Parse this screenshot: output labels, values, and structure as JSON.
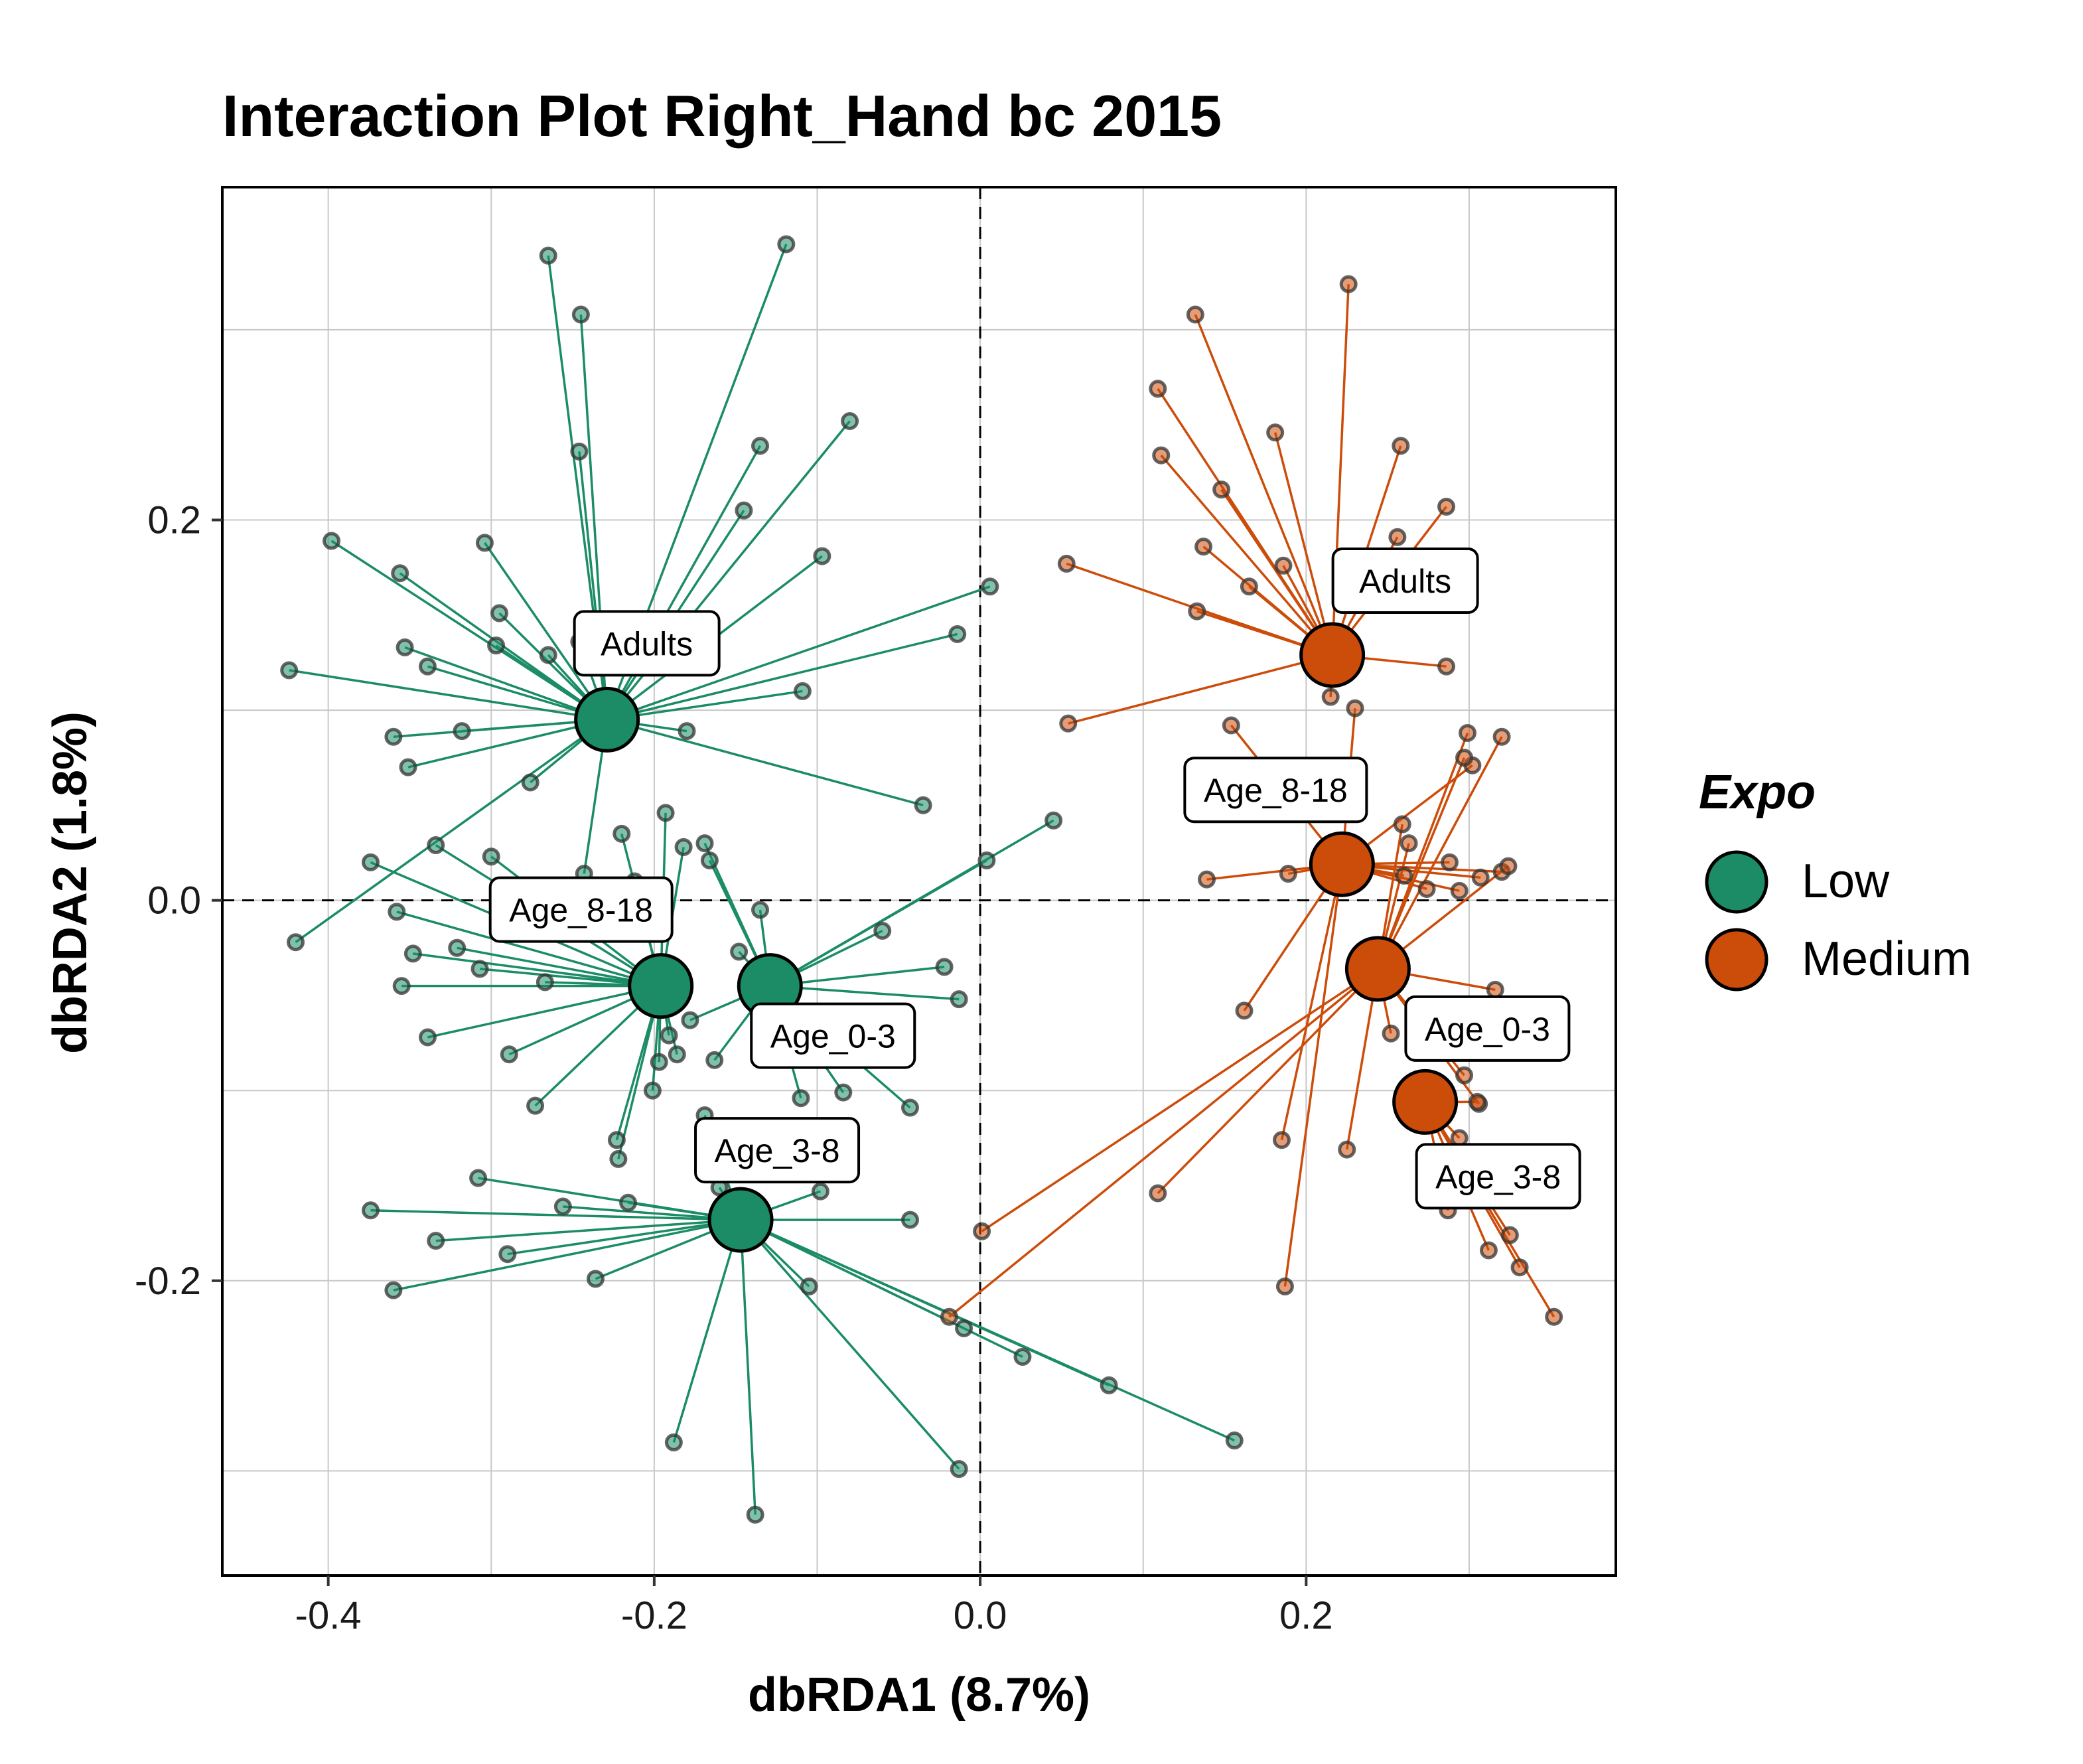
{
  "chart_data": {
    "type": "scatter",
    "title": "Interaction Plot Right_Hand bc 2015",
    "xlabel": "dbRDA1 (8.7%)",
    "ylabel": "dbRDA2 (1.8%)",
    "xlim": [
      -0.465,
      0.39
    ],
    "ylim": [
      -0.355,
      0.375
    ],
    "x_ticks": [
      -0.4,
      -0.2,
      0.0,
      0.2
    ],
    "x_tick_labels": [
      "-0.4",
      "-0.2",
      "0.0",
      "0.2"
    ],
    "y_ticks": [
      -0.2,
      0.0,
      0.2
    ],
    "y_tick_labels": [
      "-0.2",
      "0.0",
      "0.2"
    ],
    "grid": true,
    "reference_lines": {
      "x": 0,
      "y": 0,
      "style": "dashed"
    },
    "legend": {
      "title": "Expo",
      "placement": "right",
      "entries": [
        {
          "label": "Low",
          "color": "#1b8c66"
        },
        {
          "label": "Medium",
          "color": "#cc4c0a"
        }
      ]
    },
    "series": [
      {
        "name": "Low",
        "color": "#1b8c66",
        "centroids": [
          {
            "label": "Adults",
            "x": -0.229,
            "y": 0.095
          },
          {
            "label": "Age_8-18",
            "x": -0.196,
            "y": -0.045
          },
          {
            "label": "Age_0-3",
            "x": -0.129,
            "y": -0.045
          },
          {
            "label": "Age_3-8",
            "x": -0.147,
            "y": -0.168
          }
        ],
        "points": [
          {
            "g": 0,
            "x": -0.265,
            "y": 0.339
          },
          {
            "g": 0,
            "x": -0.245,
            "y": 0.308
          },
          {
            "g": 0,
            "x": -0.246,
            "y": 0.236
          },
          {
            "g": 0,
            "x": -0.398,
            "y": 0.189
          },
          {
            "g": 0,
            "x": -0.424,
            "y": 0.121
          },
          {
            "g": 0,
            "x": -0.356,
            "y": 0.172
          },
          {
            "g": 0,
            "x": -0.353,
            "y": 0.133
          },
          {
            "g": 0,
            "x": -0.339,
            "y": 0.123
          },
          {
            "g": 0,
            "x": -0.304,
            "y": 0.188
          },
          {
            "g": 0,
            "x": -0.295,
            "y": 0.151
          },
          {
            "g": 0,
            "x": -0.297,
            "y": 0.134
          },
          {
            "g": 0,
            "x": -0.265,
            "y": 0.129
          },
          {
            "g": 0,
            "x": -0.246,
            "y": 0.136
          },
          {
            "g": 0,
            "x": -0.36,
            "y": 0.086
          },
          {
            "g": 0,
            "x": -0.318,
            "y": 0.089
          },
          {
            "g": 0,
            "x": -0.351,
            "y": 0.07
          },
          {
            "g": 0,
            "x": -0.276,
            "y": 0.062
          },
          {
            "g": 0,
            "x": -0.119,
            "y": 0.345
          },
          {
            "g": 0,
            "x": -0.08,
            "y": 0.252
          },
          {
            "g": 0,
            "x": -0.135,
            "y": 0.239
          },
          {
            "g": 0,
            "x": -0.145,
            "y": 0.205
          },
          {
            "g": 0,
            "x": -0.097,
            "y": 0.181
          },
          {
            "g": 0,
            "x": -0.014,
            "y": 0.14
          },
          {
            "g": 0,
            "x": -0.109,
            "y": 0.11
          },
          {
            "g": 0,
            "x": -0.18,
            "y": 0.089
          },
          {
            "g": 0,
            "x": -0.035,
            "y": 0.05
          },
          {
            "g": 0,
            "x": -0.243,
            "y": 0.014
          },
          {
            "g": 0,
            "x": -0.42,
            "y": -0.022
          },
          {
            "g": 0,
            "x": 0.006,
            "y": 0.165
          },
          {
            "g": 1,
            "x": -0.374,
            "y": 0.02
          },
          {
            "g": 1,
            "x": -0.334,
            "y": 0.029
          },
          {
            "g": 1,
            "x": -0.3,
            "y": 0.023
          },
          {
            "g": 1,
            "x": -0.358,
            "y": -0.006
          },
          {
            "g": 1,
            "x": -0.348,
            "y": -0.028
          },
          {
            "g": 1,
            "x": -0.355,
            "y": -0.045
          },
          {
            "g": 1,
            "x": -0.321,
            "y": -0.025
          },
          {
            "g": 1,
            "x": -0.307,
            "y": -0.036
          },
          {
            "g": 1,
            "x": -0.267,
            "y": -0.043
          },
          {
            "g": 1,
            "x": -0.339,
            "y": -0.072
          },
          {
            "g": 1,
            "x": -0.289,
            "y": -0.081
          },
          {
            "g": 1,
            "x": -0.273,
            "y": -0.108
          },
          {
            "g": 1,
            "x": -0.22,
            "y": 0.035
          },
          {
            "g": 1,
            "x": -0.193,
            "y": 0.046
          },
          {
            "g": 1,
            "x": -0.182,
            "y": 0.028
          },
          {
            "g": 1,
            "x": -0.212,
            "y": 0.01
          },
          {
            "g": 1,
            "x": -0.191,
            "y": -0.071
          },
          {
            "g": 1,
            "x": -0.186,
            "y": -0.081
          },
          {
            "g": 1,
            "x": -0.201,
            "y": -0.1
          },
          {
            "g": 1,
            "x": -0.223,
            "y": -0.126
          },
          {
            "g": 1,
            "x": -0.222,
            "y": -0.136
          },
          {
            "g": 1,
            "x": -0.197,
            "y": -0.085
          },
          {
            "g": 2,
            "x": -0.166,
            "y": 0.021
          },
          {
            "g": 2,
            "x": -0.169,
            "y": 0.03
          },
          {
            "g": 2,
            "x": -0.148,
            "y": -0.027
          },
          {
            "g": 2,
            "x": -0.135,
            "y": -0.005
          },
          {
            "g": 2,
            "x": -0.06,
            "y": -0.016
          },
          {
            "g": 2,
            "x": -0.022,
            "y": -0.035
          },
          {
            "g": 2,
            "x": -0.013,
            "y": -0.052
          },
          {
            "g": 2,
            "x": 0.004,
            "y": 0.021
          },
          {
            "g": 2,
            "x": 0.045,
            "y": 0.042
          },
          {
            "g": 2,
            "x": -0.178,
            "y": -0.063
          },
          {
            "g": 2,
            "x": -0.163,
            "y": -0.084
          },
          {
            "g": 2,
            "x": -0.11,
            "y": -0.104
          },
          {
            "g": 2,
            "x": -0.084,
            "y": -0.101
          },
          {
            "g": 2,
            "x": -0.043,
            "y": -0.109
          },
          {
            "g": 3,
            "x": -0.374,
            "y": -0.163
          },
          {
            "g": 3,
            "x": -0.36,
            "y": -0.205
          },
          {
            "g": 3,
            "x": -0.334,
            "y": -0.179
          },
          {
            "g": 3,
            "x": -0.308,
            "y": -0.146
          },
          {
            "g": 3,
            "x": -0.29,
            "y": -0.186
          },
          {
            "g": 3,
            "x": -0.256,
            "y": -0.161
          },
          {
            "g": 3,
            "x": -0.236,
            "y": -0.199
          },
          {
            "g": 3,
            "x": -0.216,
            "y": -0.159
          },
          {
            "g": 3,
            "x": -0.169,
            "y": -0.113
          },
          {
            "g": 3,
            "x": -0.16,
            "y": -0.151
          },
          {
            "g": 3,
            "x": -0.098,
            "y": -0.153
          },
          {
            "g": 3,
            "x": -0.043,
            "y": -0.168
          },
          {
            "g": 3,
            "x": -0.105,
            "y": -0.203
          },
          {
            "g": 3,
            "x": -0.188,
            "y": -0.285
          },
          {
            "g": 3,
            "x": -0.138,
            "y": -0.323
          },
          {
            "g": 3,
            "x": -0.013,
            "y": -0.299
          },
          {
            "g": 3,
            "x": -0.01,
            "y": -0.225
          },
          {
            "g": 3,
            "x": 0.026,
            "y": -0.24
          },
          {
            "g": 3,
            "x": 0.079,
            "y": -0.255
          },
          {
            "g": 3,
            "x": 0.156,
            "y": -0.284
          }
        ]
      },
      {
        "name": "Medium",
        "color": "#cc4c0a",
        "centroids": [
          {
            "label": "Adults",
            "x": 0.216,
            "y": 0.129
          },
          {
            "label": "Age_8-18",
            "x": 0.222,
            "y": 0.019
          },
          {
            "label": "Age_0-3",
            "x": 0.244,
            "y": -0.036
          },
          {
            "label": "Age_3-8",
            "x": 0.273,
            "y": -0.106
          }
        ],
        "points": [
          {
            "g": 0,
            "x": 0.132,
            "y": 0.308
          },
          {
            "g": 0,
            "x": 0.109,
            "y": 0.269
          },
          {
            "g": 0,
            "x": 0.111,
            "y": 0.234
          },
          {
            "g": 0,
            "x": 0.053,
            "y": 0.177
          },
          {
            "g": 0,
            "x": 0.054,
            "y": 0.093
          },
          {
            "g": 0,
            "x": 0.137,
            "y": 0.186
          },
          {
            "g": 0,
            "x": 0.148,
            "y": 0.216
          },
          {
            "g": 0,
            "x": 0.133,
            "y": 0.152
          },
          {
            "g": 0,
            "x": 0.165,
            "y": 0.165
          },
          {
            "g": 0,
            "x": 0.181,
            "y": 0.246
          },
          {
            "g": 0,
            "x": 0.186,
            "y": 0.176
          },
          {
            "g": 0,
            "x": 0.226,
            "y": 0.324
          },
          {
            "g": 0,
            "x": 0.258,
            "y": 0.239
          },
          {
            "g": 0,
            "x": 0.286,
            "y": 0.207
          },
          {
            "g": 0,
            "x": 0.256,
            "y": 0.191
          },
          {
            "g": 0,
            "x": 0.286,
            "y": 0.123
          },
          {
            "g": 0,
            "x": 0.215,
            "y": 0.107
          },
          {
            "g": 1,
            "x": 0.139,
            "y": 0.011
          },
          {
            "g": 1,
            "x": 0.189,
            "y": 0.014
          },
          {
            "g": 1,
            "x": 0.154,
            "y": 0.092
          },
          {
            "g": 1,
            "x": 0.23,
            "y": 0.101
          },
          {
            "g": 1,
            "x": 0.26,
            "y": 0.013
          },
          {
            "g": 1,
            "x": 0.274,
            "y": 0.006
          },
          {
            "g": 1,
            "x": 0.294,
            "y": 0.005
          },
          {
            "g": 1,
            "x": 0.288,
            "y": 0.02
          },
          {
            "g": 1,
            "x": 0.307,
            "y": 0.012
          },
          {
            "g": 1,
            "x": 0.32,
            "y": 0.015
          },
          {
            "g": 1,
            "x": 0.302,
            "y": 0.071
          },
          {
            "g": 1,
            "x": 0.162,
            "y": -0.058
          },
          {
            "g": 1,
            "x": 0.185,
            "y": -0.126
          },
          {
            "g": 1,
            "x": 0.187,
            "y": -0.203
          },
          {
            "g": 2,
            "x": 0.259,
            "y": 0.04
          },
          {
            "g": 2,
            "x": 0.263,
            "y": 0.03
          },
          {
            "g": 2,
            "x": 0.297,
            "y": 0.075
          },
          {
            "g": 2,
            "x": 0.299,
            "y": 0.088
          },
          {
            "g": 2,
            "x": 0.32,
            "y": 0.086
          },
          {
            "g": 2,
            "x": 0.324,
            "y": 0.018
          },
          {
            "g": 2,
            "x": 0.316,
            "y": -0.047
          },
          {
            "g": 2,
            "x": 0.297,
            "y": -0.092
          },
          {
            "g": 2,
            "x": 0.306,
            "y": -0.107
          },
          {
            "g": 2,
            "x": 0.109,
            "y": -0.154
          },
          {
            "g": 2,
            "x": 0.225,
            "y": -0.131
          },
          {
            "g": 2,
            "x": 0.001,
            "y": -0.174
          },
          {
            "g": 2,
            "x": -0.019,
            "y": -0.219
          },
          {
            "g": 2,
            "x": 0.252,
            "y": -0.07
          },
          {
            "g": 3,
            "x": 0.287,
            "y": -0.163
          },
          {
            "g": 3,
            "x": 0.312,
            "y": -0.184
          },
          {
            "g": 3,
            "x": 0.325,
            "y": -0.176
          },
          {
            "g": 3,
            "x": 0.331,
            "y": -0.193
          },
          {
            "g": 3,
            "x": 0.352,
            "y": -0.219
          },
          {
            "g": 3,
            "x": 0.305,
            "y": -0.106
          },
          {
            "g": 3,
            "x": 0.294,
            "y": -0.125
          },
          {
            "g": 3,
            "x": 0.262,
            "y": -0.104
          }
        ]
      }
    ]
  }
}
